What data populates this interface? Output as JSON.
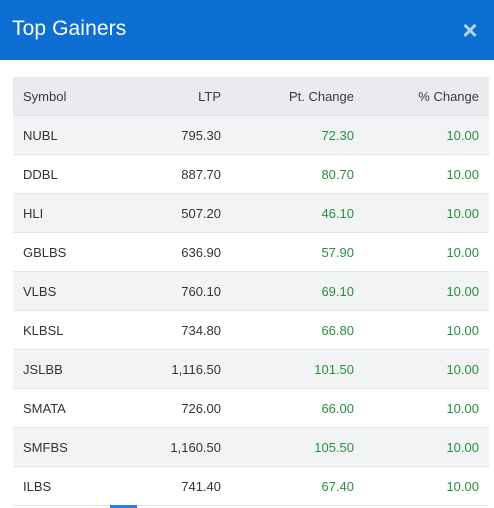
{
  "modal": {
    "title": "Top Gainers",
    "close_icon": "close-icon",
    "accent_color": "#0c6fd1",
    "gain_color": "#2a8f3c"
  },
  "table": {
    "headers": [
      "Symbol",
      "LTP",
      "Pt. Change",
      "% Change"
    ],
    "rows": [
      {
        "symbol": "NUBL",
        "ltp": "795.30",
        "pt_change": "72.30",
        "pct_change": "10.00"
      },
      {
        "symbol": "DDBL",
        "ltp": "887.70",
        "pt_change": "80.70",
        "pct_change": "10.00"
      },
      {
        "symbol": "HLI",
        "ltp": "507.20",
        "pt_change": "46.10",
        "pct_change": "10.00"
      },
      {
        "symbol": "GBLBS",
        "ltp": "636.90",
        "pt_change": "57.90",
        "pct_change": "10.00"
      },
      {
        "symbol": "VLBS",
        "ltp": "760.10",
        "pt_change": "69.10",
        "pct_change": "10.00"
      },
      {
        "symbol": "KLBSL",
        "ltp": "734.80",
        "pt_change": "66.80",
        "pct_change": "10.00"
      },
      {
        "symbol": "JSLBB",
        "ltp": "1,116.50",
        "pt_change": "101.50",
        "pct_change": "10.00"
      },
      {
        "symbol": "SMATA",
        "ltp": "726.00",
        "pt_change": "66.00",
        "pct_change": "10.00"
      },
      {
        "symbol": "SMFBS",
        "ltp": "1,160.50",
        "pt_change": "105.50",
        "pct_change": "10.00"
      },
      {
        "symbol": "ILBS",
        "ltp": "741.40",
        "pt_change": "67.40",
        "pct_change": "10.00"
      }
    ]
  }
}
